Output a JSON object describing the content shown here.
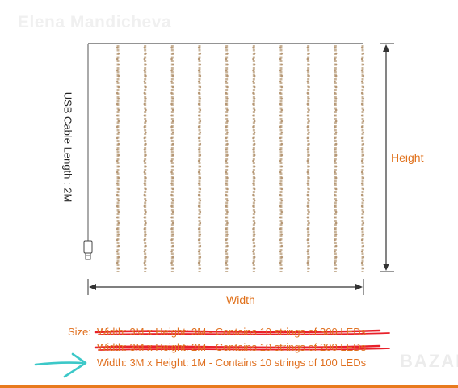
{
  "watermark": "Elena Mandicheva",
  "diagram": {
    "cable_label": "USB Cable Length : 2M",
    "height_label": "Height",
    "width_label": "Width",
    "string_count": 10
  },
  "size": {
    "prefix": "Size:",
    "options": [
      {
        "label": "Width: 3M x Height: 3M - Contains 10 strings of 300 LEDs",
        "crossed_out": true
      },
      {
        "label": "Width: 3M x Height: 2M - Contains 10 strings of 200 LEDs",
        "crossed_out": true
      },
      {
        "label": "Width: 3M x Height: 1M - Contains 10 strings of 100 LEDs",
        "crossed_out": false,
        "highlighted": true
      }
    ]
  },
  "site_logo": "BAZAR",
  "colors": {
    "accent": "#e07020",
    "strike": "#e8202a",
    "highlight_arrow": "#3cc8c8",
    "led_string": "#c9b49a",
    "frame": "#555555"
  }
}
